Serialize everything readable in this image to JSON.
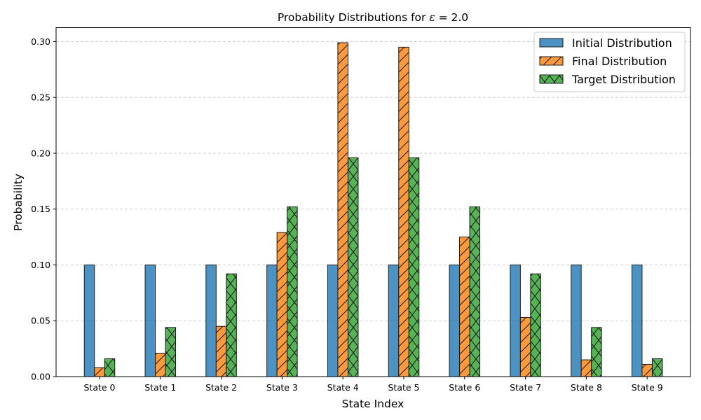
{
  "chart_data": {
    "type": "bar",
    "title": "Probability Distributions for ε = 2.0",
    "title_prefix": "Probability Distributions for ",
    "title_symbol": "ε",
    "title_suffix": " = 2.0",
    "xlabel": "State Index",
    "ylabel": "Probability",
    "ylim": [
      0,
      0.3125
    ],
    "yticks": [
      "0.00",
      "0.05",
      "0.10",
      "0.15",
      "0.20",
      "0.25",
      "0.30"
    ],
    "ytick_values": [
      0,
      0.05,
      0.1,
      0.15,
      0.2,
      0.25,
      0.3
    ],
    "grid": "y-dashed",
    "legend_position": "top-right",
    "categories": [
      "State 0",
      "State 1",
      "State 2",
      "State 3",
      "State 4",
      "State 5",
      "State 6",
      "State 7",
      "State 8",
      "State 9"
    ],
    "series": [
      {
        "name": "Initial Distribution",
        "color": "#1f77b4",
        "hatch": "none",
        "values": [
          0.1,
          0.1,
          0.1,
          0.1,
          0.1,
          0.1,
          0.1,
          0.1,
          0.1,
          0.1
        ]
      },
      {
        "name": "Final Distribution",
        "color": "#ff7f0e",
        "hatch": "diagonal",
        "values": [
          0.008,
          0.021,
          0.045,
          0.129,
          0.299,
          0.295,
          0.125,
          0.053,
          0.015,
          0.011
        ]
      },
      {
        "name": "Target Distribution",
        "color": "#2ca02c",
        "hatch": "cross",
        "values": [
          0.016,
          0.044,
          0.092,
          0.152,
          0.196,
          0.196,
          0.152,
          0.092,
          0.044,
          0.016
        ]
      }
    ]
  }
}
